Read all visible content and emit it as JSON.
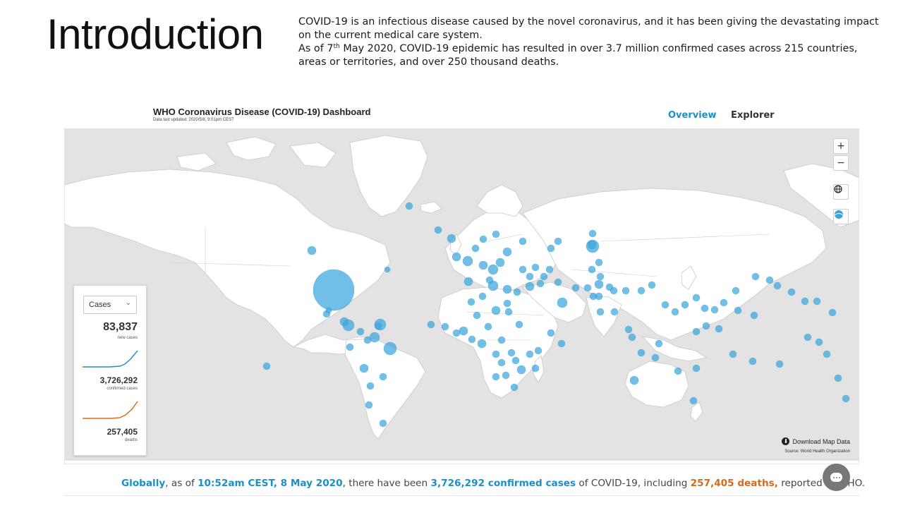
{
  "slide": {
    "title": "Introduction",
    "intro_line1": "COVID-19 is an infectious disease caused by the novel coronavirus, and it has been giving the devastating impact on the current medical care system.",
    "intro_line2_pre": "As of 7",
    "intro_line2_sup": "th",
    "intro_line2_post": " May 2020, COVID-19 epidemic has resulted in over 3.7 million confirmed cases across 215 countries, areas or territories, and over 250 thousand deaths."
  },
  "dashboard": {
    "title": "WHO Coronavirus Disease (COVID-19) Dashboard",
    "updated": "Data last updated: 2020/5/8, 9:01pm CEST",
    "nav": {
      "overview": "Overview",
      "explorer": "Explorer"
    },
    "map_controls": {
      "zoom_in": "+",
      "zoom_out": "−"
    },
    "panel": {
      "select_value": "Cases",
      "new_cases": "83,837",
      "new_cases_label": "new cases",
      "confirmed": "3,726,292",
      "confirmed_label": "confirmed cases",
      "deaths": "257,405",
      "deaths_label": "deaths"
    },
    "download": "Download Map Data",
    "source": "Source: World Health Organization",
    "summary": {
      "globally": "Globally",
      "as_of": ", as of ",
      "datetime": "10:52am CEST, 8 May 2020",
      "there_have_been": ", there have been ",
      "confirmed": "3,726,292 confirmed cases",
      "of_covid": " of COVID-19, including ",
      "deaths": "257,405 deaths,",
      "reported": " reported to WHO."
    },
    "colors": {
      "accent_blue": "#1b8fc6",
      "deaths_orange": "#d66a1c",
      "bubble": "#3aa6dd",
      "land": "#ffffff",
      "ocean": "#e3e3e3"
    },
    "icons": {
      "globe": "globe-icon",
      "layers": "layers-icon",
      "download": "download-icon",
      "chat": "chat-icon",
      "chevron": "chevron-down-icon"
    }
  }
}
